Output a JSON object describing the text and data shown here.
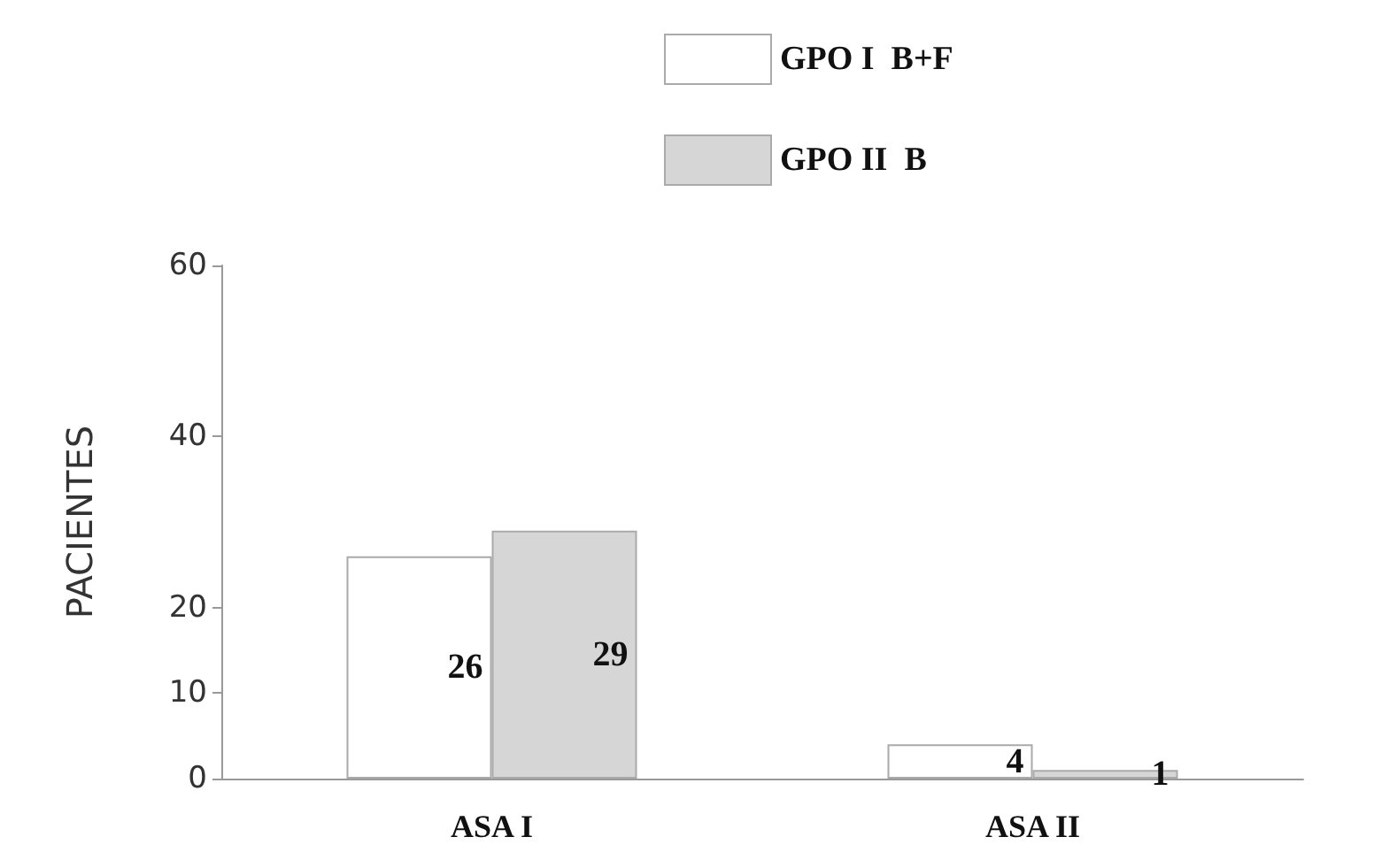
{
  "chart_data": {
    "type": "bar",
    "ylabel": "PACIENTES",
    "categories": [
      "ASA I",
      "ASA II"
    ],
    "series": [
      {
        "name": "GPO I  B+F",
        "color": "#ffffff",
        "values": [
          26,
          4
        ]
      },
      {
        "name": "GPO II  B",
        "color": "#d6d6d6",
        "values": [
          29,
          1
        ]
      }
    ],
    "ylim": [
      0,
      60
    ],
    "yticks": [
      0,
      10,
      20,
      40,
      60
    ],
    "data_labels": true,
    "grid": false,
    "legend": "top"
  }
}
